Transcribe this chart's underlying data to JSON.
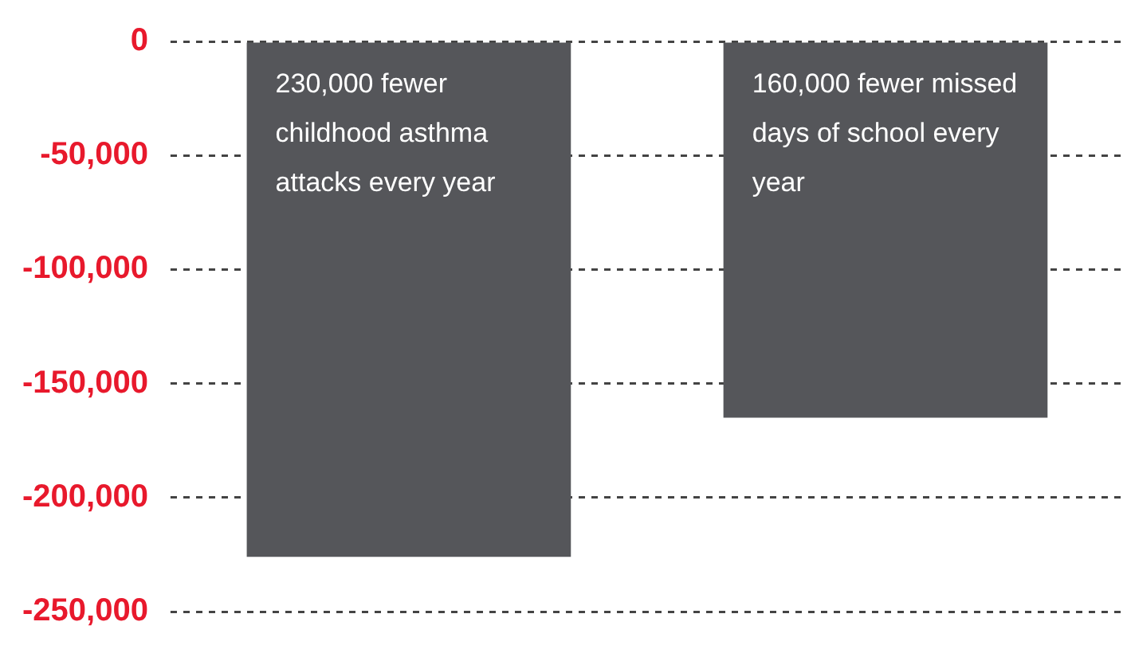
{
  "chart_data": {
    "type": "bar",
    "categories": [
      null,
      null
    ],
    "values": [
      -226000,
      -165000
    ],
    "color": "#55565a",
    "ylim": [
      -250000,
      0
    ],
    "yticks": [
      {
        "value": 0,
        "label": "0"
      },
      {
        "value": -50000,
        "label": "-50,000"
      },
      {
        "value": -100000,
        "label": "-100,000"
      },
      {
        "value": -150000,
        "label": "-150,000"
      },
      {
        "value": -200000,
        "label": "-200,000"
      },
      {
        "value": -250000,
        "label": "-250,000"
      }
    ],
    "grid": "y",
    "tick_labels": "y",
    "annotations": [
      "230,000 fewer childhood asthma attacks every year",
      "160,000 fewer missed days of school every year"
    ]
  }
}
